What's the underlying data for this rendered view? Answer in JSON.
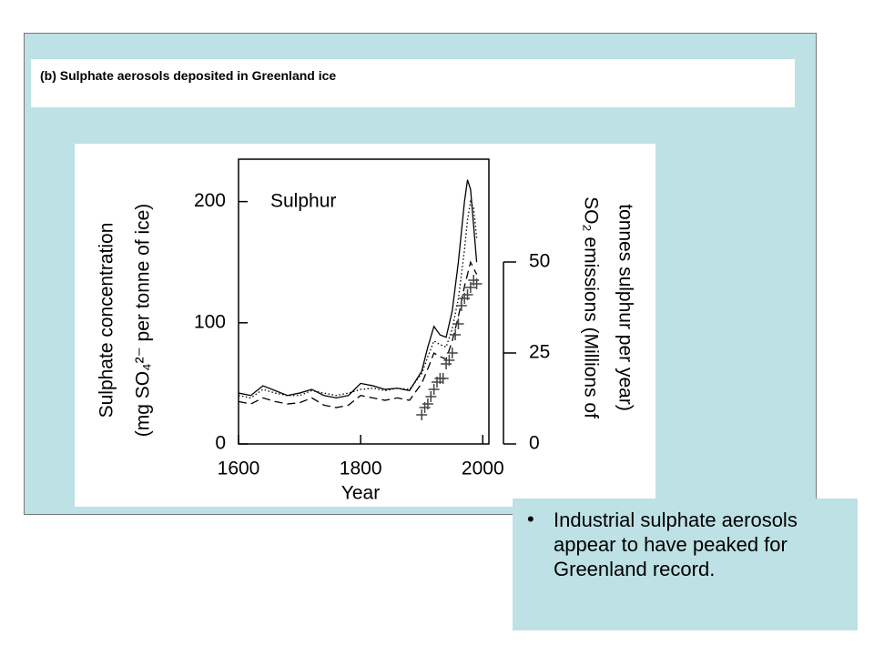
{
  "slide": {
    "panel_title": "(b) Sulphate aerosols deposited in Greenland ice",
    "bullet": "Industrial sulphate aerosols appear to have peaked for Greenland record."
  },
  "chart_data": {
    "type": "line",
    "annotation": "Sulphur",
    "xlabel": "Year",
    "ylabel": [
      "Sulphate concentration",
      "(mg SO₄²⁻ per tonne of ice)"
    ],
    "y2label": [
      "SO₂ emissions (Millions of",
      "tonnes sulphur per year)"
    ],
    "xlim": [
      1600,
      2010
    ],
    "xticks": [
      1600,
      1800,
      2000
    ],
    "ylim": [
      0,
      235
    ],
    "yticks": [
      0,
      100,
      200
    ],
    "y2lim": [
      0,
      50
    ],
    "y2ticks": [
      0,
      25,
      50
    ],
    "x": [
      1600,
      1620,
      1640,
      1660,
      1680,
      1700,
      1720,
      1740,
      1760,
      1780,
      1800,
      1820,
      1840,
      1860,
      1880,
      1900,
      1910,
      1920,
      1930,
      1940,
      1950,
      1960,
      1970,
      1975,
      1980,
      1985,
      1990
    ],
    "series": [
      {
        "color": "#000000",
        "dash": "solid",
        "values": [
          42,
          40,
          48,
          44,
          40,
          42,
          45,
          40,
          38,
          40,
          50,
          48,
          45,
          46,
          44,
          60,
          80,
          97,
          90,
          88,
          110,
          150,
          200,
          218,
          210,
          180,
          150
        ]
      },
      {
        "color": "#000000",
        "dash": "dotted",
        "values": [
          40,
          38,
          45,
          42,
          40,
          40,
          44,
          42,
          40,
          42,
          45,
          46,
          44,
          46,
          45,
          58,
          72,
          85,
          82,
          80,
          95,
          120,
          160,
          185,
          200,
          195,
          170
        ]
      },
      {
        "color": "#000000",
        "dash": "dashed",
        "values": [
          35,
          33,
          38,
          35,
          33,
          34,
          38,
          32,
          30,
          32,
          40,
          38,
          36,
          38,
          36,
          50,
          62,
          75,
          72,
          70,
          85,
          105,
          130,
          140,
          150,
          145,
          140
        ]
      },
      {
        "color": "#444444",
        "axis": "y2",
        "marker": "plus",
        "x": [
          1900,
          1905,
          1910,
          1915,
          1920,
          1925,
          1930,
          1935,
          1940,
          1945,
          1950,
          1955,
          1960,
          1965,
          1970,
          1975,
          1980,
          1985,
          1990
        ],
        "values": [
          8,
          10,
          11,
          13,
          15,
          17,
          18,
          18,
          22,
          23,
          25,
          30,
          33,
          38,
          40,
          41,
          43,
          45,
          44
        ]
      }
    ]
  }
}
